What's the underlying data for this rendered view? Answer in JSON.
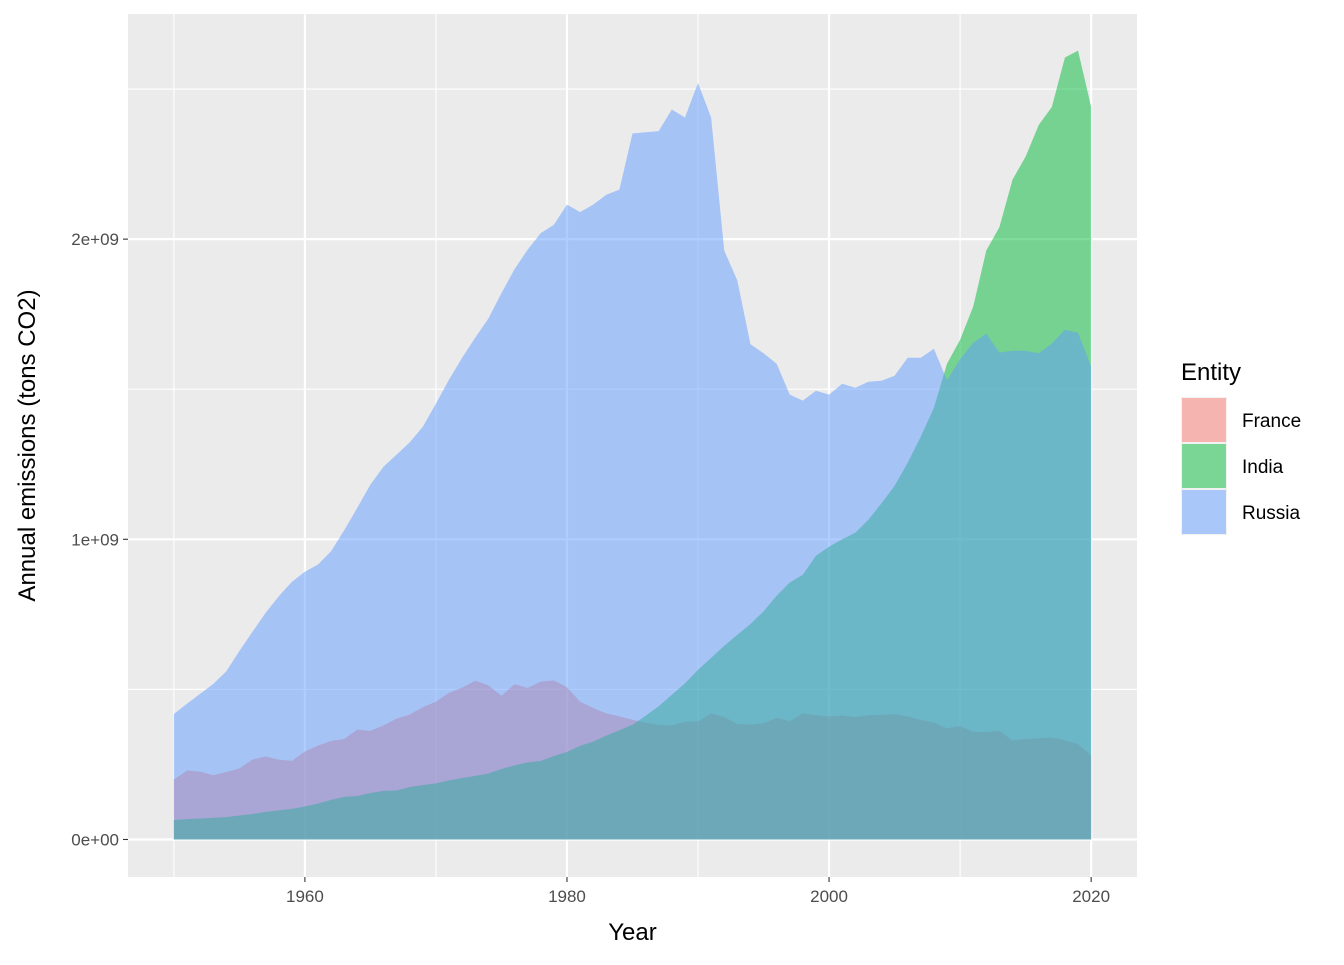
{
  "chart_data": {
    "type": "area",
    "xlabel": "Year",
    "ylabel": "Annual emissions (tons CO2)",
    "xlim": [
      1946.5,
      2023.5
    ],
    "ylim": [
      -125000000,
      2750000000
    ],
    "x_ticks": [
      1960,
      1980,
      2000,
      2020
    ],
    "x_tick_labels": [
      "1960",
      "1980",
      "2000",
      "2020"
    ],
    "y_ticks": [
      0,
      1000000000,
      2000000000
    ],
    "y_tick_labels": [
      "0e+00",
      "1e+09",
      "2e+09"
    ],
    "grid": true,
    "legend": {
      "title": "Entity",
      "placement": "right"
    },
    "series": [
      {
        "name": "France",
        "color": "#F8766D",
        "x": [
          1950,
          1951,
          1952,
          1953,
          1954,
          1955,
          1956,
          1957,
          1958,
          1959,
          1960,
          1961,
          1962,
          1963,
          1964,
          1965,
          1966,
          1967,
          1968,
          1969,
          1970,
          1971,
          1972,
          1973,
          1974,
          1975,
          1976,
          1977,
          1978,
          1979,
          1980,
          1981,
          1982,
          1983,
          1984,
          1985,
          1986,
          1987,
          1988,
          1989,
          1990,
          1991,
          1992,
          1993,
          1994,
          1995,
          1996,
          1997,
          1998,
          1999,
          2000,
          2001,
          2002,
          2003,
          2004,
          2005,
          2006,
          2007,
          2008,
          2009,
          2010,
          2011,
          2012,
          2013,
          2014,
          2015,
          2016,
          2017,
          2018,
          2019,
          2020
        ],
        "values": [
          200000000,
          230000000,
          226000000,
          214000000,
          225000000,
          237000000,
          266000000,
          277000000,
          266000000,
          262000000,
          293000000,
          313000000,
          328000000,
          335000000,
          366000000,
          362000000,
          380000000,
          403000000,
          416000000,
          441000000,
          459000000,
          489000000,
          506000000,
          529000000,
          514000000,
          479000000,
          517000000,
          505000000,
          526000000,
          530000000,
          507000000,
          459000000,
          438000000,
          420000000,
          410000000,
          399000000,
          389000000,
          382000000,
          380000000,
          392000000,
          393000000,
          420000000,
          408000000,
          385000000,
          383000000,
          387000000,
          405000000,
          394000000,
          420000000,
          414000000,
          410000000,
          413000000,
          408000000,
          414000000,
          415000000,
          418000000,
          410000000,
          398000000,
          390000000,
          370000000,
          378000000,
          358000000,
          358000000,
          362000000,
          330000000,
          335000000,
          337000000,
          340000000,
          330000000,
          318000000,
          280000000
        ]
      },
      {
        "name": "India",
        "color": "#00BA38",
        "x": [
          1950,
          1951,
          1952,
          1953,
          1954,
          1955,
          1956,
          1957,
          1958,
          1959,
          1960,
          1961,
          1962,
          1963,
          1964,
          1965,
          1966,
          1967,
          1968,
          1969,
          1970,
          1971,
          1972,
          1973,
          1974,
          1975,
          1976,
          1977,
          1978,
          1979,
          1980,
          1981,
          1982,
          1983,
          1984,
          1985,
          1986,
          1987,
          1988,
          1989,
          1990,
          1991,
          1992,
          1993,
          1994,
          1995,
          1996,
          1997,
          1998,
          1999,
          2000,
          2001,
          2002,
          2003,
          2004,
          2005,
          2006,
          2007,
          2008,
          2009,
          2010,
          2011,
          2012,
          2013,
          2014,
          2015,
          2016,
          2017,
          2018,
          2019,
          2020
        ],
        "values": [
          65000000,
          68000000,
          70000000,
          72000000,
          75000000,
          80000000,
          85000000,
          92000000,
          97000000,
          102000000,
          110000000,
          120000000,
          132000000,
          142000000,
          145000000,
          155000000,
          162000000,
          163000000,
          175000000,
          181000000,
          187000000,
          197000000,
          205000000,
          212000000,
          220000000,
          235000000,
          247000000,
          257000000,
          262000000,
          278000000,
          292000000,
          312000000,
          326000000,
          346000000,
          364000000,
          382000000,
          412000000,
          444000000,
          482000000,
          520000000,
          565000000,
          605000000,
          645000000,
          682000000,
          718000000,
          760000000,
          812000000,
          856000000,
          882000000,
          945000000,
          975000000,
          1000000000,
          1022000000,
          1065000000,
          1120000000,
          1178000000,
          1255000000,
          1342000000,
          1438000000,
          1585000000,
          1665000000,
          1775000000,
          1962000000,
          2040000000,
          2198000000,
          2275000000,
          2380000000,
          2440000000,
          2605000000,
          2628000000,
          2440000000
        ]
      },
      {
        "name": "Russia",
        "color": "#619CFF",
        "x": [
          1950,
          1951,
          1952,
          1953,
          1954,
          1955,
          1956,
          1957,
          1958,
          1959,
          1960,
          1961,
          1962,
          1963,
          1964,
          1965,
          1966,
          1967,
          1968,
          1969,
          1970,
          1971,
          1972,
          1973,
          1974,
          1975,
          1976,
          1977,
          1978,
          1979,
          1980,
          1981,
          1982,
          1983,
          1984,
          1985,
          1986,
          1987,
          1988,
          1989,
          1990,
          1991,
          1992,
          1993,
          1994,
          1995,
          1996,
          1997,
          1998,
          1999,
          2000,
          2001,
          2002,
          2003,
          2004,
          2005,
          2006,
          2007,
          2008,
          2009,
          2010,
          2011,
          2012,
          2013,
          2014,
          2015,
          2016,
          2017,
          2018,
          2019,
          2020
        ],
        "values": [
          418000000,
          452000000,
          485000000,
          518000000,
          560000000,
          628000000,
          692000000,
          755000000,
          810000000,
          858000000,
          892000000,
          916000000,
          960000000,
          1030000000,
          1105000000,
          1182000000,
          1242000000,
          1282000000,
          1323000000,
          1375000000,
          1452000000,
          1532000000,
          1605000000,
          1672000000,
          1735000000,
          1820000000,
          1900000000,
          1965000000,
          2020000000,
          2048000000,
          2115000000,
          2090000000,
          2115000000,
          2148000000,
          2165000000,
          2352000000,
          2356000000,
          2360000000,
          2432000000,
          2405000000,
          2520000000,
          2405000000,
          1962000000,
          1862000000,
          1650000000,
          1620000000,
          1585000000,
          1482000000,
          1462000000,
          1495000000,
          1482000000,
          1518000000,
          1505000000,
          1525000000,
          1528000000,
          1545000000,
          1605000000,
          1605000000,
          1635000000,
          1530000000,
          1600000000,
          1655000000,
          1685000000,
          1622000000,
          1628000000,
          1628000000,
          1620000000,
          1652000000,
          1698000000,
          1688000000,
          1575000000
        ]
      }
    ]
  }
}
